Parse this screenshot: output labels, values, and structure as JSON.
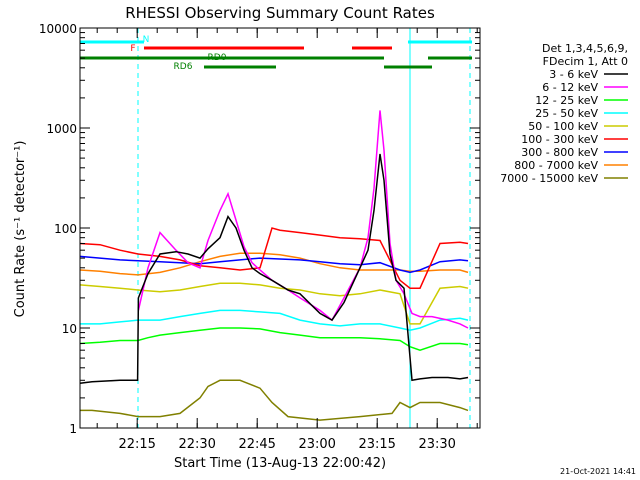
{
  "chart_data": {
    "type": "line",
    "title": "RHESSI Observing Summary Count Rates",
    "xlabel": "Start Time (13-Aug-13 22:00:42)",
    "ylabel": "Count Rate (s⁻¹ detector⁻¹)",
    "y_scale": "log",
    "ylim": [
      1,
      10000
    ],
    "xlim": [
      0,
      100
    ],
    "x_unit": "minutes since 22:00:42",
    "y_ticks": [
      {
        "value": 1,
        "label": "1"
      },
      {
        "value": 10,
        "label": "10"
      },
      {
        "value": 100,
        "label": "100"
      },
      {
        "value": 1000,
        "label": "1000"
      },
      {
        "value": 10000,
        "label": "10000"
      }
    ],
    "x_ticks": [
      {
        "value": 14.3,
        "label": "22:15"
      },
      {
        "value": 29.3,
        "label": "22:30"
      },
      {
        "value": 44.3,
        "label": "22:45"
      },
      {
        "value": 59.3,
        "label": "23:00"
      },
      {
        "value": 74.3,
        "label": "23:15"
      },
      {
        "value": 89.3,
        "label": "23:30"
      }
    ],
    "legend_header": [
      "Det 1,3,4,5,6,9,",
      "FDecim 1, Att 0"
    ],
    "legend_position": "right",
    "flags": [
      {
        "label": "N",
        "color": "#00ffff",
        "segments": [
          [
            0,
            16
          ],
          [
            82,
            98
          ]
        ],
        "level": 0
      },
      {
        "label": "F",
        "color": "#ff0000",
        "segments": [
          [
            16,
            56
          ],
          [
            68,
            78
          ]
        ],
        "level": 1
      },
      {
        "label": "RD0",
        "color": "#008000",
        "segments": [
          [
            0,
            48
          ],
          [
            48,
            76
          ],
          [
            87,
            98
          ]
        ],
        "level": 2
      },
      {
        "label": "RD6",
        "color": "#008000",
        "segments": [
          [
            31,
            49
          ],
          [
            76,
            88
          ]
        ],
        "level": 3
      }
    ],
    "vlines": [
      {
        "x": 0,
        "style": "solid",
        "color": "#00ffff"
      },
      {
        "x": 14.5,
        "style": "dashed",
        "color": "#00ffff"
      },
      {
        "x": 82.5,
        "style": "solid",
        "color": "#00ffff"
      },
      {
        "x": 97.5,
        "style": "dashed",
        "color": "#00ffff"
      }
    ],
    "series": [
      {
        "name": "3 - 6 keV",
        "color": "#000000",
        "x": [
          0,
          3,
          10,
          14.4,
          14.6,
          17,
          20,
          24,
          27,
          30,
          32,
          35,
          37,
          39,
          41,
          43,
          45,
          48,
          52,
          55,
          60,
          63,
          66,
          70,
          72,
          73.5,
          75,
          76,
          77.5,
          79,
          81,
          83,
          85,
          88,
          92,
          95,
          97
        ],
        "y": [
          2.8,
          2.9,
          3.0,
          3.0,
          20,
          35,
          55,
          58,
          55,
          50,
          62,
          80,
          130,
          100,
          60,
          40,
          35,
          30,
          24,
          22,
          14,
          12,
          18,
          40,
          60,
          150,
          550,
          300,
          55,
          30,
          25,
          3.0,
          3.1,
          3.2,
          3.2,
          3.1,
          3.2
        ]
      },
      {
        "name": "6 - 12 keV",
        "color": "#ff00ff",
        "x": [
          14.6,
          17,
          20,
          24,
          27,
          30,
          32,
          35,
          37,
          39,
          41,
          43,
          45,
          48,
          52,
          55,
          60,
          63,
          66,
          70,
          72,
          73.5,
          75,
          76,
          77.5,
          79,
          81,
          83,
          85,
          88,
          92,
          95,
          97
        ],
        "y": [
          15,
          40,
          90,
          60,
          45,
          40,
          75,
          150,
          220,
          120,
          65,
          45,
          38,
          30,
          24,
          20,
          15,
          12,
          20,
          40,
          80,
          250,
          1500,
          600,
          70,
          30,
          22,
          14,
          13,
          13,
          12,
          11,
          10
        ]
      },
      {
        "name": "12 - 25 keV",
        "color": "#00ff00",
        "x": [
          0,
          5,
          10,
          14.5,
          17,
          20,
          25,
          30,
          35,
          40,
          45,
          50,
          55,
          60,
          65,
          70,
          75,
          80,
          82.5,
          85,
          90,
          95,
          97
        ],
        "y": [
          7.0,
          7.2,
          7.5,
          7.5,
          8.0,
          8.5,
          9.0,
          9.5,
          10,
          10,
          9.8,
          9.0,
          8.5,
          8.0,
          8.0,
          8.0,
          7.8,
          7.5,
          6.5,
          6.0,
          7.0,
          7.0,
          6.8
        ]
      },
      {
        "name": "25 - 50 keV",
        "color": "#00ffff",
        "x": [
          0,
          5,
          10,
          14.5,
          20,
          25,
          30,
          35,
          40,
          45,
          50,
          55,
          60,
          65,
          70,
          75,
          80,
          82.5,
          85,
          90,
          95,
          97
        ],
        "y": [
          11,
          11,
          11.5,
          12,
          12,
          13,
          14,
          15,
          15,
          14.5,
          14,
          12,
          11,
          10.5,
          11,
          11,
          10,
          9.5,
          10,
          12,
          12.5,
          12
        ]
      },
      {
        "name": "50 - 100 keV",
        "color": "#cccc00",
        "x": [
          0,
          5,
          10,
          14.5,
          20,
          25,
          30,
          35,
          40,
          45,
          50,
          55,
          60,
          65,
          70,
          75,
          80,
          82.5,
          85,
          90,
          95,
          97
        ],
        "y": [
          27,
          26,
          25,
          24,
          23,
          24,
          26,
          28,
          28,
          27,
          25,
          24,
          22,
          21,
          22,
          24,
          22,
          11,
          11,
          25,
          26,
          25
        ]
      },
      {
        "name": "100 - 300 keV",
        "color": "#ff0000",
        "x": [
          0,
          5,
          10,
          14.5,
          20,
          25,
          30,
          35,
          40,
          45,
          48,
          50,
          55,
          60,
          65,
          70,
          75,
          80,
          82.5,
          85,
          90,
          95,
          97
        ],
        "y": [
          70,
          68,
          60,
          55,
          52,
          48,
          42,
          40,
          38,
          40,
          100,
          95,
          90,
          85,
          80,
          78,
          75,
          30,
          25,
          25,
          70,
          72,
          70
        ]
      },
      {
        "name": "300 - 800 keV",
        "color": "#0000ff",
        "x": [
          0,
          5,
          10,
          14.5,
          20,
          25,
          30,
          35,
          40,
          45,
          50,
          55,
          60,
          65,
          70,
          75,
          80,
          82.5,
          85,
          90,
          95,
          97
        ],
        "y": [
          52,
          50,
          48,
          47,
          46,
          45,
          44,
          46,
          48,
          50,
          49,
          48,
          46,
          44,
          43,
          45,
          38,
          36,
          38,
          46,
          48,
          47
        ]
      },
      {
        "name": "800 - 7000 keV",
        "color": "#ff8000",
        "x": [
          0,
          5,
          10,
          14.5,
          20,
          25,
          30,
          35,
          40,
          45,
          50,
          55,
          60,
          65,
          70,
          75,
          80,
          82.5,
          85,
          90,
          95,
          97
        ],
        "y": [
          38,
          37,
          35,
          34,
          36,
          40,
          46,
          52,
          56,
          56,
          54,
          50,
          44,
          40,
          38,
          38,
          38,
          37,
          37,
          38,
          38,
          36
        ]
      },
      {
        "name": "7000 - 15000 keV",
        "color": "#808000",
        "x": [
          0,
          3,
          10,
          14.5,
          20,
          25,
          30,
          32,
          35,
          40,
          45,
          48,
          52,
          60,
          70,
          78,
          80,
          82.5,
          85,
          90,
          95,
          97
        ],
        "y": [
          1.5,
          1.5,
          1.4,
          1.3,
          1.3,
          1.4,
          2.0,
          2.6,
          3.0,
          3.0,
          2.5,
          1.8,
          1.3,
          1.2,
          1.3,
          1.4,
          1.8,
          1.6,
          1.8,
          1.8,
          1.6,
          1.5
        ]
      }
    ]
  },
  "footer_date": "21-Oct-2021 14:41"
}
